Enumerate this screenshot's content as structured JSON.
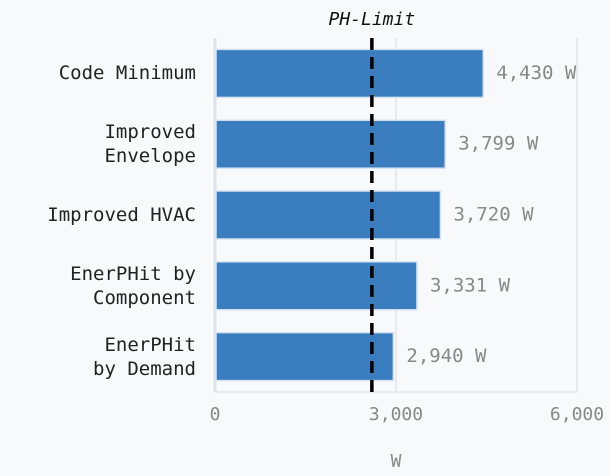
{
  "chart_data": {
    "type": "barh",
    "categories": [
      "Code Minimum",
      "Improved\nEnvelope",
      "Improved HVAC",
      "EnerPHit by\nComponent",
      "EnerPHit\nby Demand"
    ],
    "values": [
      4430,
      3799,
      3720,
      3331,
      2940
    ],
    "value_labels": [
      "4,430 W",
      "3,799 W",
      "3,720 W",
      "3,331 W",
      "2,940 W"
    ],
    "color": "#3a7ebf",
    "xlim": [
      0,
      6000
    ],
    "xticks": [
      0,
      {
        "value": 3000,
        "label": "3,000"
      },
      {
        "value": 6000,
        "label": "6,000"
      }
    ],
    "xlabel": "W",
    "grid": true,
    "annotation": {
      "text": "PH-Limit",
      "value": 2600
    }
  }
}
